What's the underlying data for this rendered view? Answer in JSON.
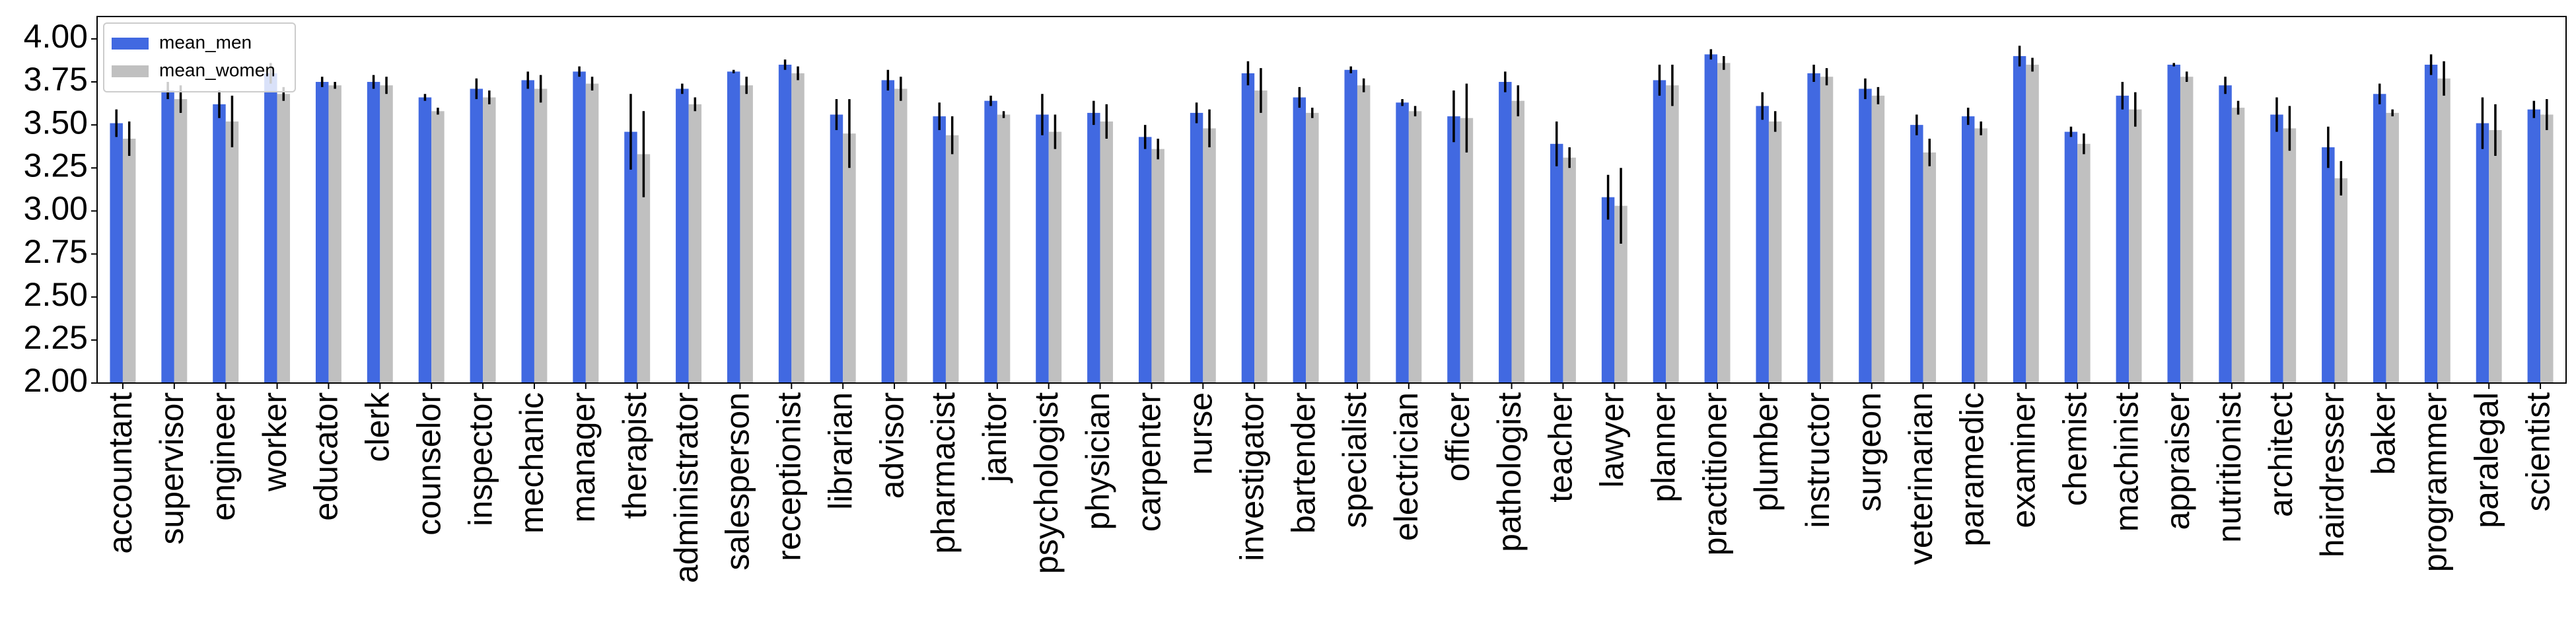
{
  "chart_data": {
    "type": "bar",
    "categories": [
      "accountant",
      "supervisor",
      "engineer",
      "worker",
      "educator",
      "clerk",
      "counselor",
      "inspector",
      "mechanic",
      "manager",
      "therapist",
      "administrator",
      "salesperson",
      "receptionist",
      "librarian",
      "advisor",
      "pharmacist",
      "janitor",
      "psychologist",
      "physician",
      "carpenter",
      "nurse",
      "investigator",
      "bartender",
      "specialist",
      "electrician",
      "officer",
      "pathologist",
      "teacher",
      "lawyer",
      "planner",
      "practitioner",
      "plumber",
      "instructor",
      "surgeon",
      "veterinarian",
      "paramedic",
      "examiner",
      "chemist",
      "machinist",
      "appraiser",
      "nutritionist",
      "architect",
      "hairdresser",
      "baker",
      "programmer",
      "paralegal",
      "scientist"
    ],
    "series": [
      {
        "name": "mean_men",
        "color": "#4169e1",
        "values": [
          3.51,
          3.7,
          3.62,
          3.8,
          3.75,
          3.75,
          3.66,
          3.71,
          3.76,
          3.81,
          3.46,
          3.71,
          3.81,
          3.85,
          3.56,
          3.76,
          3.55,
          3.64,
          3.56,
          3.57,
          3.43,
          3.57,
          3.8,
          3.66,
          3.82,
          3.63,
          3.55,
          3.75,
          3.39,
          3.08,
          3.76,
          3.91,
          3.61,
          3.8,
          3.71,
          3.5,
          3.55,
          3.9,
          3.46,
          3.67,
          3.85,
          3.73,
          3.56,
          3.37,
          3.68,
          3.85,
          3.51,
          3.59
        ],
        "errors": [
          0.08,
          0.05,
          0.08,
          0.06,
          0.03,
          0.04,
          0.02,
          0.06,
          0.05,
          0.03,
          0.22,
          0.03,
          0.01,
          0.03,
          0.09,
          0.06,
          0.08,
          0.03,
          0.12,
          0.07,
          0.07,
          0.06,
          0.07,
          0.06,
          0.02,
          0.02,
          0.15,
          0.06,
          0.13,
          0.13,
          0.09,
          0.03,
          0.08,
          0.05,
          0.06,
          0.06,
          0.05,
          0.06,
          0.03,
          0.08,
          0.01,
          0.05,
          0.1,
          0.12,
          0.06,
          0.06,
          0.15,
          0.05
        ]
      },
      {
        "name": "mean_women",
        "color": "#c0c0c0",
        "values": [
          3.42,
          3.65,
          3.52,
          3.68,
          3.73,
          3.73,
          3.58,
          3.66,
          3.71,
          3.74,
          3.33,
          3.62,
          3.73,
          3.8,
          3.45,
          3.71,
          3.44,
          3.56,
          3.46,
          3.52,
          3.36,
          3.48,
          3.7,
          3.57,
          3.73,
          3.58,
          3.54,
          3.64,
          3.31,
          3.03,
          3.73,
          3.86,
          3.52,
          3.78,
          3.67,
          3.34,
          3.48,
          3.85,
          3.39,
          3.59,
          3.78,
          3.6,
          3.48,
          3.19,
          3.57,
          3.77,
          3.47,
          3.56
        ],
        "errors": [
          0.1,
          0.08,
          0.15,
          0.04,
          0.02,
          0.05,
          0.02,
          0.04,
          0.08,
          0.04,
          0.25,
          0.04,
          0.05,
          0.04,
          0.2,
          0.07,
          0.11,
          0.02,
          0.1,
          0.1,
          0.06,
          0.11,
          0.13,
          0.03,
          0.04,
          0.03,
          0.2,
          0.09,
          0.06,
          0.22,
          0.12,
          0.04,
          0.06,
          0.05,
          0.05,
          0.08,
          0.04,
          0.04,
          0.06,
          0.1,
          0.03,
          0.04,
          0.13,
          0.1,
          0.02,
          0.1,
          0.15,
          0.09
        ]
      }
    ],
    "ylim": [
      2,
      4.13
    ],
    "yticks": [
      {
        "value": 2,
        "label": "2.00"
      },
      {
        "value": 2.25,
        "label": "2.25"
      },
      {
        "value": 2.5,
        "label": "2.50"
      },
      {
        "value": 2.75,
        "label": "2.75"
      },
      {
        "value": 3,
        "label": "3.00"
      },
      {
        "value": 3.25,
        "label": "3.25"
      },
      {
        "value": 3.5,
        "label": "3.50"
      },
      {
        "value": 3.75,
        "label": "3.75"
      },
      {
        "value": 4,
        "label": "4.00"
      }
    ],
    "legend": "upper left"
  }
}
